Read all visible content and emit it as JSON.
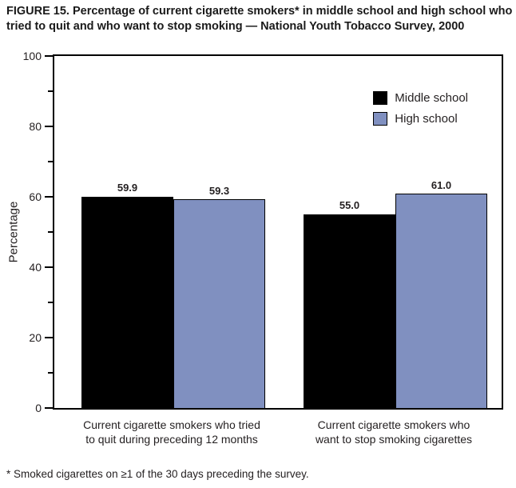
{
  "title": "FIGURE 15. Percentage of current cigarette smokers* in middle school and high school who tried to quit and who want to stop smoking — National Youth Tobacco Survey, 2000",
  "footnote": "* Smoked cigarettes on ≥1 of the 30 days preceding the survey.",
  "chart_data": {
    "type": "bar",
    "title": "FIGURE 15. Percentage of current cigarette smokers* in middle school and high school who tried to quit and who want to stop smoking — National Youth Tobacco Survey, 2000",
    "ylabel": "Percentage",
    "xlabel": "",
    "ylim": [
      0,
      100
    ],
    "yticks_major": [
      0,
      20,
      40,
      60,
      80,
      100
    ],
    "yticks_minor": [
      10,
      30,
      50,
      70,
      90
    ],
    "grid": false,
    "legend_position": "top-right-inside",
    "categories": [
      "Current cigarette  smokers who tried to quit during preceding 12 months",
      "Current cigarette smokers who want to stop smoking cigarettes"
    ],
    "category_lines": [
      [
        "Current cigarette  smokers who tried",
        "to quit during preceding 12 months"
      ],
      [
        "Current cigarette smokers who",
        "want to stop smoking cigarettes"
      ]
    ],
    "series": [
      {
        "name": "Middle school",
        "color": "#000000",
        "values": [
          59.9,
          55.0
        ],
        "value_labels": [
          "59.9",
          "55.0"
        ]
      },
      {
        "name": "High school",
        "color": "#8090c0",
        "values": [
          59.3,
          61.0
        ],
        "value_labels": [
          "59.3",
          "61.0"
        ]
      }
    ]
  }
}
